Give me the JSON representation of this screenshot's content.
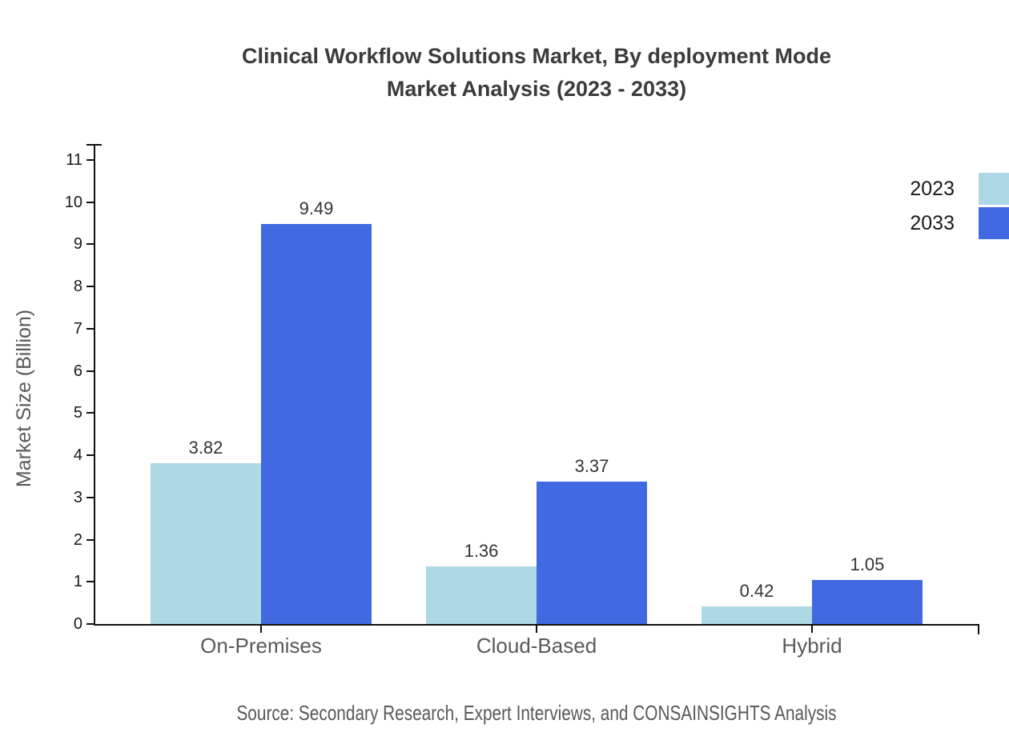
{
  "title": {
    "line1": "Clinical Workflow Solutions Market, By deployment Mode",
    "line2": "Market Analysis (2023 - 2033)"
  },
  "source": "Source: Secondary Research, Expert Interviews, and CONSAINSIGHTS Analysis",
  "chart_data": {
    "type": "bar",
    "categories": [
      "On-Premises",
      "Cloud-Based",
      "Hybrid"
    ],
    "series": [
      {
        "name": "2023",
        "color": "#ADD8E6",
        "values": [
          3.82,
          1.36,
          0.42
        ]
      },
      {
        "name": "2033",
        "color": "#4169E1",
        "values": [
          9.49,
          3.37,
          1.05
        ]
      }
    ],
    "title": "Clinical Workflow Solutions Market, By deployment Mode Market Analysis (2023 - 2033)",
    "xlabel": "",
    "ylabel": "Market Size (Billion)",
    "ylim": [
      0,
      11
    ],
    "yticks": [
      0,
      1,
      2,
      3,
      4,
      5,
      6,
      7,
      8,
      9,
      10,
      11
    ],
    "grid": false,
    "legend_position": "top-right",
    "value_labels": true
  },
  "colors": {
    "background": "#ffffff",
    "axis": "#111111",
    "title_text": "#3b3b3b",
    "tick_label": "#1a1a1a",
    "category_label": "#595959",
    "value_label": "#333333",
    "axis_title": "#595959",
    "source_text": "#595959",
    "legend_label": "#1a1a1a",
    "series_2023": "#ADD8E6",
    "series_2033": "#4169E1"
  }
}
